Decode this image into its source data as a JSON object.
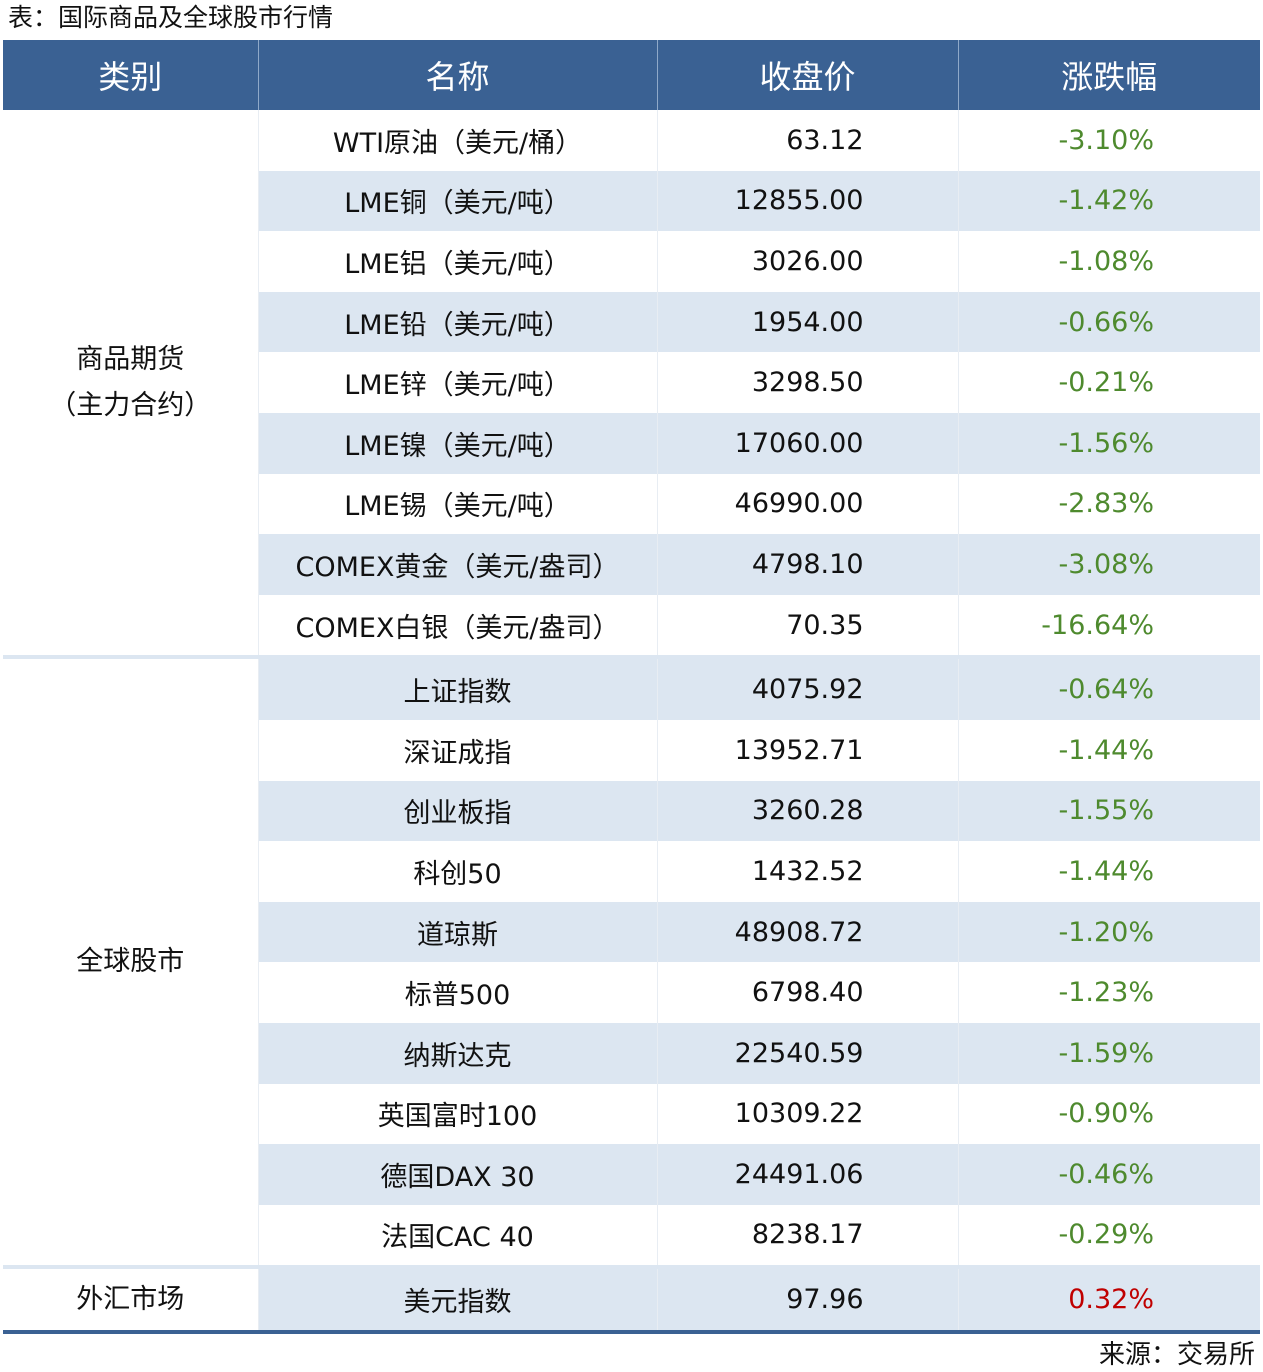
{
  "title": "表：国际商品及全球股市行情",
  "source": "来源：交易所",
  "colors": {
    "header": "#3a6193",
    "stripe": "#dce6f1",
    "down": "#4e8a2e",
    "up": "#c00000"
  },
  "headers": [
    "类别",
    "名称",
    "收盘价",
    "涨跌幅"
  ],
  "groups": [
    {
      "category": [
        "商品期货",
        "（主力合约）"
      ],
      "rows": [
        {
          "name": "WTI原油（美元/桶）",
          "price": "63.12",
          "change": "-3.10%"
        },
        {
          "name": "LME铜（美元/吨）",
          "price": "12855.00",
          "change": "-1.42%"
        },
        {
          "name": "LME铝（美元/吨）",
          "price": "3026.00",
          "change": "-1.08%"
        },
        {
          "name": "LME铅（美元/吨）",
          "price": "1954.00",
          "change": "-0.66%"
        },
        {
          "name": "LME锌（美元/吨）",
          "price": "3298.50",
          "change": "-0.21%"
        },
        {
          "name": "LME镍（美元/吨）",
          "price": "17060.00",
          "change": "-1.56%"
        },
        {
          "name": "LME锡（美元/吨）",
          "price": "46990.00",
          "change": "-2.83%"
        },
        {
          "name": "COMEX黄金（美元/盎司）",
          "price": "4798.10",
          "change": "-3.08%"
        },
        {
          "name": "COMEX白银（美元/盎司）",
          "price": "70.35",
          "change": "-16.64%"
        }
      ]
    },
    {
      "category": [
        "全球股市"
      ],
      "rows": [
        {
          "name": "上证指数",
          "price": "4075.92",
          "change": "-0.64%"
        },
        {
          "name": "深证成指",
          "price": "13952.71",
          "change": "-1.44%"
        },
        {
          "name": "创业板指",
          "price": "3260.28",
          "change": "-1.55%"
        },
        {
          "name": "科创50",
          "price": "1432.52",
          "change": "-1.44%"
        },
        {
          "name": "道琼斯",
          "price": "48908.72",
          "change": "-1.20%"
        },
        {
          "name": "标普500",
          "price": "6798.40",
          "change": "-1.23%"
        },
        {
          "name": "纳斯达克",
          "price": "22540.59",
          "change": "-1.59%"
        },
        {
          "name": "英国富时100",
          "price": "10309.22",
          "change": "-0.90%"
        },
        {
          "name": "德国DAX 30",
          "price": "24491.06",
          "change": "-0.46%"
        },
        {
          "name": "法国CAC 40",
          "price": "8238.17",
          "change": "-0.29%"
        }
      ]
    },
    {
      "category": [
        "外汇市场"
      ],
      "rows": [
        {
          "name": "美元指数",
          "price": "97.96",
          "change": "0.32%"
        }
      ]
    }
  ]
}
